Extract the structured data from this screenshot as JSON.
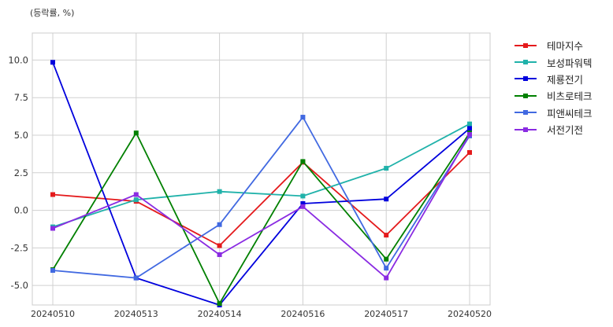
{
  "chart_data": {
    "type": "line",
    "unit_note": "(등락률, %)",
    "categories": [
      "20240510",
      "20240513",
      "20240514",
      "20240516",
      "20240517",
      "20240520"
    ],
    "ylim": [
      -6.3,
      11.8
    ],
    "yticks": [
      -5.0,
      -2.5,
      0.0,
      2.5,
      5.0,
      7.5,
      10.0
    ],
    "ytick_labels": [
      "-5.0",
      "-2.5",
      "0.0",
      "2.5",
      "5.0",
      "7.5",
      "10.0"
    ],
    "grid": true,
    "legend_position": "right",
    "series": [
      {
        "name": "테마지수",
        "color": "#e41a1c",
        "values": [
          1.05,
          0.6,
          -2.35,
          3.2,
          -1.65,
          3.85
        ]
      },
      {
        "name": "보성파워텍",
        "color": "#20b2aa",
        "values": [
          -1.1,
          0.7,
          1.25,
          0.95,
          2.8,
          5.75
        ]
      },
      {
        "name": "제룡전기",
        "color": "#0000dd",
        "values": [
          9.85,
          -4.5,
          -6.3,
          0.45,
          0.75,
          5.45
        ]
      },
      {
        "name": "비츠로테크",
        "color": "#008000",
        "values": [
          -3.95,
          5.15,
          -6.2,
          3.25,
          -3.25,
          5.15
        ]
      },
      {
        "name": "피앤씨테크",
        "color": "#4169e1",
        "values": [
          -4.0,
          -4.5,
          -0.95,
          6.2,
          -3.85,
          4.95
        ]
      },
      {
        "name": "서전기전",
        "color": "#8a2be2",
        "values": [
          -1.2,
          1.05,
          -2.95,
          0.25,
          -4.5,
          5.05
        ]
      }
    ]
  }
}
